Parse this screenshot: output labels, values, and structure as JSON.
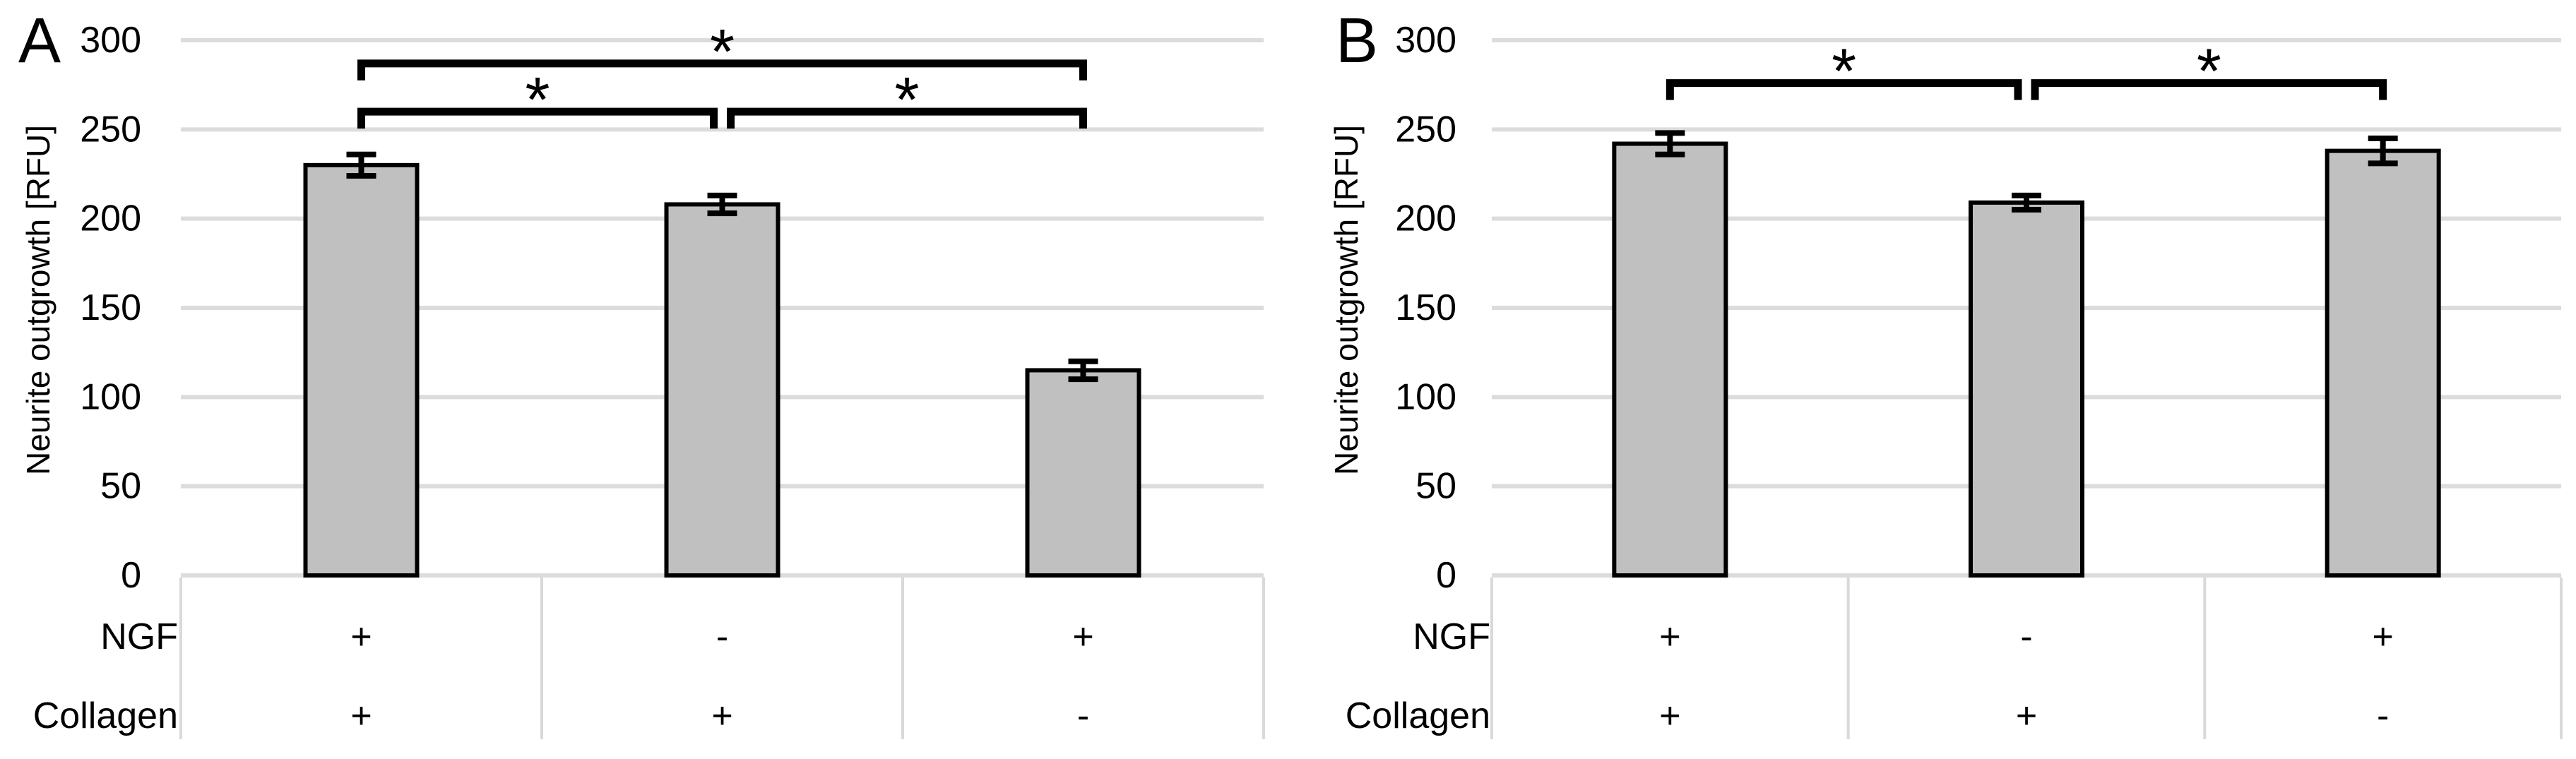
{
  "figure": {
    "panels": [
      {
        "label": "A"
      },
      {
        "label": "B"
      }
    ]
  },
  "chart_data": [
    {
      "type": "bar",
      "panel": "A",
      "title": "",
      "xlabel": "",
      "ylabel": "Neurite outgrowth [RFU]",
      "ylim": [
        0,
        300
      ],
      "yticks": [
        300,
        250,
        200,
        150,
        100,
        50,
        0
      ],
      "grid": true,
      "legend": "none",
      "categories": [
        "NGF+ / Collagen+",
        "NGF- / Collagen+",
        "NGF+ / Collagen-"
      ],
      "values": [
        230,
        208,
        115
      ],
      "errors": [
        6,
        5,
        5
      ],
      "condition_rows": [
        {
          "label": "NGF",
          "values": [
            "+",
            "-",
            "+"
          ]
        },
        {
          "label": "Collagen",
          "values": [
            "+",
            "+",
            "-"
          ]
        }
      ],
      "significance": [
        {
          "from": 0,
          "to": 2,
          "label": "*",
          "height_rfu": 287
        },
        {
          "from": 0,
          "to": 1,
          "label": "*",
          "height_rfu": 260
        },
        {
          "from": 1,
          "to": 2,
          "label": "*",
          "height_rfu": 260
        }
      ],
      "colors": {
        "bar_fill": "#C0C0C0",
        "bar_border": "#000000",
        "gridline": "#DCDCDC",
        "table_line": "#D9D9D9",
        "text": "#000000"
      }
    },
    {
      "type": "bar",
      "panel": "B",
      "title": "",
      "xlabel": "",
      "ylabel": "Neurite outgrowth [RFU]",
      "ylim": [
        0,
        300
      ],
      "yticks": [
        300,
        250,
        200,
        150,
        100,
        50,
        0
      ],
      "grid": true,
      "legend": "none",
      "categories": [
        "NGF+ / Collagen+",
        "NGF- / Collagen+",
        "NGF+ / Collagen-"
      ],
      "values": [
        242,
        209,
        238
      ],
      "errors": [
        6,
        4,
        7
      ],
      "condition_rows": [
        {
          "label": "NGF",
          "values": [
            "+",
            "-",
            "+"
          ]
        },
        {
          "label": "Collagen",
          "values": [
            "+",
            "+",
            "-"
          ]
        }
      ],
      "significance": [
        {
          "from": 0,
          "to": 1,
          "label": "*",
          "height_rfu": 276
        },
        {
          "from": 1,
          "to": 2,
          "label": "*",
          "height_rfu": 276
        }
      ],
      "colors": {
        "bar_fill": "#C0C0C0",
        "bar_border": "#000000",
        "gridline": "#DCDCDC",
        "table_line": "#D9D9D9",
        "text": "#000000"
      }
    }
  ]
}
